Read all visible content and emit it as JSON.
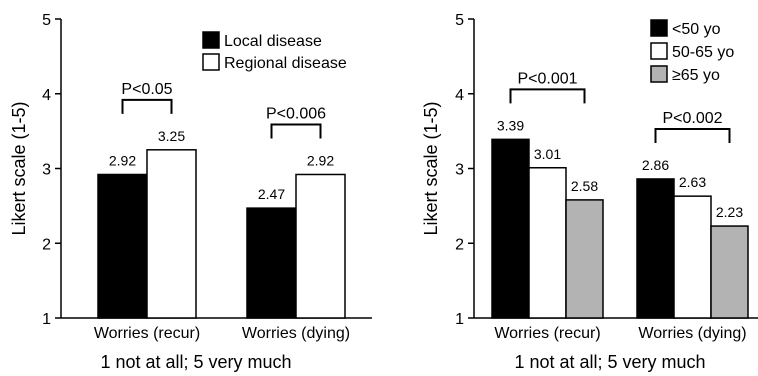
{
  "chart_data": [
    {
      "type": "bar",
      "ylabel": "Likert scale (1-5)",
      "xlabel": "1 not at all; 5 very much",
      "ylim": [
        1,
        5
      ],
      "yticks": [
        "1",
        "2",
        "3",
        "4",
        "5"
      ],
      "categories": [
        "Worries (recur)",
        "Worries (dying)"
      ],
      "series": [
        {
          "name": "Local disease",
          "values": [
            2.92,
            2.47
          ],
          "color": "#000000"
        },
        {
          "name": "Regional disease",
          "values": [
            3.25,
            2.92
          ],
          "color": "#ffffff"
        }
      ],
      "value_labels": [
        [
          "2.92",
          "3.25"
        ],
        [
          "2.47",
          "2.92"
        ]
      ],
      "legend_position": "top-right",
      "annotations": [
        {
          "text": "P<0.05",
          "category": 0
        },
        {
          "text": "P<0.006",
          "category": 1
        }
      ]
    },
    {
      "type": "bar",
      "ylabel": "Likert scale (1-5)",
      "xlabel": "1 not at all; 5 very much",
      "ylim": [
        1,
        5
      ],
      "yticks": [
        "1",
        "2",
        "3",
        "4",
        "5"
      ],
      "categories": [
        "Worries (recur)",
        "Worries (dying)"
      ],
      "series": [
        {
          "name": "<50 yo",
          "values": [
            3.39,
            2.86
          ],
          "color": "#000000"
        },
        {
          "name": "50-65 yo",
          "values": [
            3.01,
            2.63
          ],
          "color": "#ffffff"
        },
        {
          "name": "≥65 yo",
          "values": [
            2.58,
            2.23
          ],
          "color": "#b3b3b3"
        }
      ],
      "value_labels": [
        [
          "3.39",
          "3.01",
          "2.58"
        ],
        [
          "2.86",
          "2.63",
          "2.23"
        ]
      ],
      "legend_position": "top-right",
      "annotations": [
        {
          "text": "P<0.001",
          "category": 0
        },
        {
          "text": "P<0.002",
          "category": 1
        }
      ]
    }
  ]
}
